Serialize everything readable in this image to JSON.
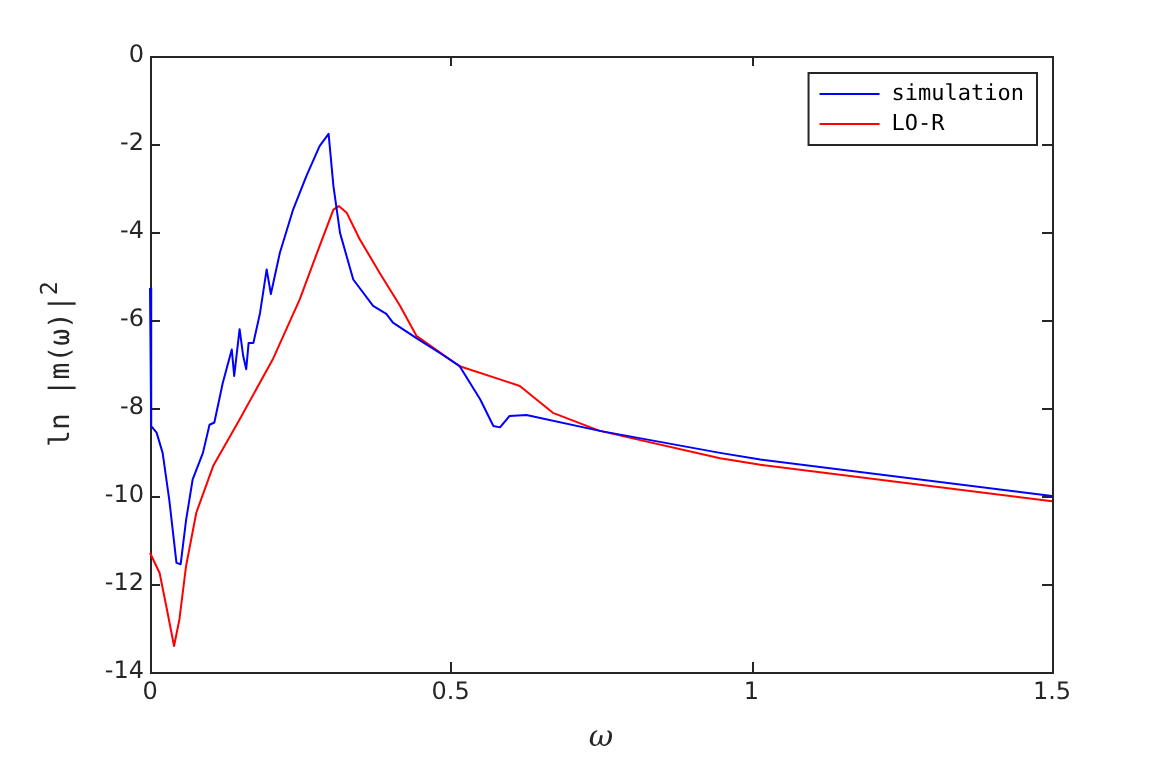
{
  "chart_data": {
    "type": "line",
    "xlabel": "ω",
    "ylabel": "ln |m(ω)|$^{2}$",
    "xlim": [
      0,
      1.5
    ],
    "xticks": [
      0,
      0.5,
      1,
      1.5
    ],
    "ylim": [
      -14,
      0
    ],
    "yticks": [
      -14,
      -12,
      -10,
      -8,
      -6,
      -4,
      -2,
      0
    ],
    "grid": false,
    "legend": "top right",
    "marker": "none",
    "line_style": "solid",
    "series": [
      {
        "name": "simulation",
        "color": "#0000ff",
        "x": [
          0,
          0.002,
          0.011,
          0.021,
          0.032,
          0.044,
          0.051,
          0.06,
          0.071,
          0.088,
          0.099,
          0.107,
          0.121,
          0.136,
          0.14,
          0.149,
          0.155,
          0.16,
          0.164,
          0.172,
          0.183,
          0.194,
          0.201,
          0.216,
          0.238,
          0.26,
          0.282,
          0.297,
          0.305,
          0.316,
          0.338,
          0.371,
          0.393,
          0.404,
          0.443,
          0.482,
          0.515,
          0.549,
          0.571,
          0.582,
          0.598,
          0.626,
          0.748,
          0.948,
          1.015,
          1.5
        ],
        "values": [
          -5.27,
          -8.41,
          -8.56,
          -9.02,
          -10.08,
          -11.52,
          -11.55,
          -10.55,
          -9.62,
          -9.02,
          -8.38,
          -8.33,
          -7.43,
          -6.67,
          -7.27,
          -6.21,
          -6.82,
          -7.12,
          -6.52,
          -6.52,
          -5.84,
          -4.85,
          -5.41,
          -4.47,
          -3.49,
          -2.73,
          -2.05,
          -1.77,
          -2.95,
          -4.02,
          -5.08,
          -5.68,
          -5.86,
          -6.06,
          -6.41,
          -6.75,
          -7.05,
          -7.8,
          -8.41,
          -8.44,
          -8.18,
          -8.16,
          -8.52,
          -9.02,
          -9.17,
          -10.0
        ]
      },
      {
        "name": "LO-R",
        "color": "#ff0000",
        "x": [
          0,
          0.016,
          0.027,
          0.04,
          0.049,
          0.06,
          0.077,
          0.105,
          0.149,
          0.204,
          0.249,
          0.282,
          0.305,
          0.314,
          0.327,
          0.349,
          0.382,
          0.416,
          0.443,
          0.515,
          0.582,
          0.615,
          0.67,
          0.748,
          0.948,
          1.015,
          1.5
        ],
        "values": [
          -11.29,
          -11.75,
          -12.5,
          -13.41,
          -12.8,
          -11.59,
          -10.38,
          -9.32,
          -8.26,
          -6.9,
          -5.53,
          -4.32,
          -3.49,
          -3.41,
          -3.56,
          -4.17,
          -4.93,
          -5.68,
          -6.36,
          -7.05,
          -7.35,
          -7.5,
          -8.11,
          -8.52,
          -9.14,
          -9.29,
          -10.12
        ]
      }
    ]
  }
}
